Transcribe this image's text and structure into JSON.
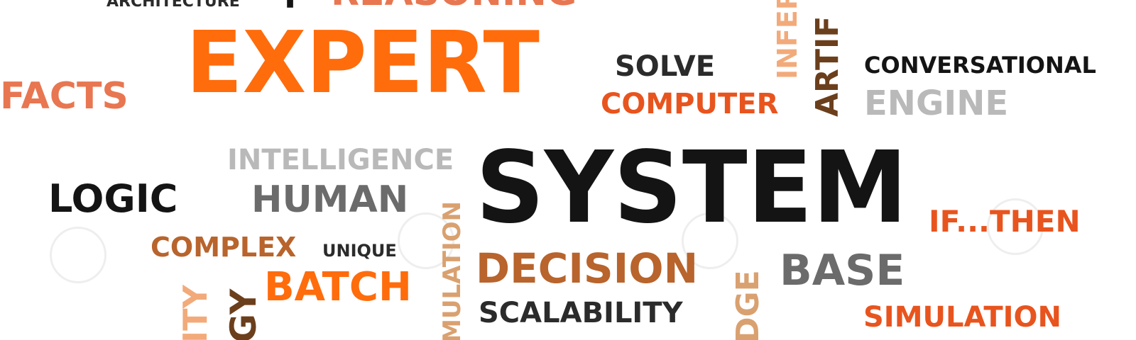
{
  "words": {
    "architecture": "ARCHITECTURE",
    "fragment_f": "F",
    "reasoning": "REASONING",
    "expert": "EXPERT",
    "facts": "FACTS",
    "solve": "SOLVE",
    "computer": "COMPUTER",
    "inference": "INFER",
    "artificial": "ARTIF",
    "conversational": "CONVERSATIONAL",
    "engine": "ENGINE",
    "intelligence": "INTELLIGENCE",
    "system": "SYSTEM",
    "logic": "LOGIC",
    "human": "HUMAN",
    "if_then": "IF...THEN",
    "complex": "COMPLEX",
    "unique": "UNIQUE",
    "simulation_vertical": "MULATION",
    "decision": "DECISION",
    "base": "BASE",
    "ity": "ITY",
    "gy": "GY",
    "batch": "BATCH",
    "knowledge": "DGE",
    "scalability": "SCALABILITY",
    "simulation": "SIMULATION"
  },
  "colors": {
    "orange": "#ff6c0c",
    "red_orange": "#e8541e",
    "salmon": "#e87650",
    "brown": "#b8642c",
    "dark_brown": "#6b3f1c",
    "peach": "#f2aa7a",
    "black": "#141414",
    "gray": "#6b6b6b",
    "light_gray": "#b9b9b9"
  }
}
